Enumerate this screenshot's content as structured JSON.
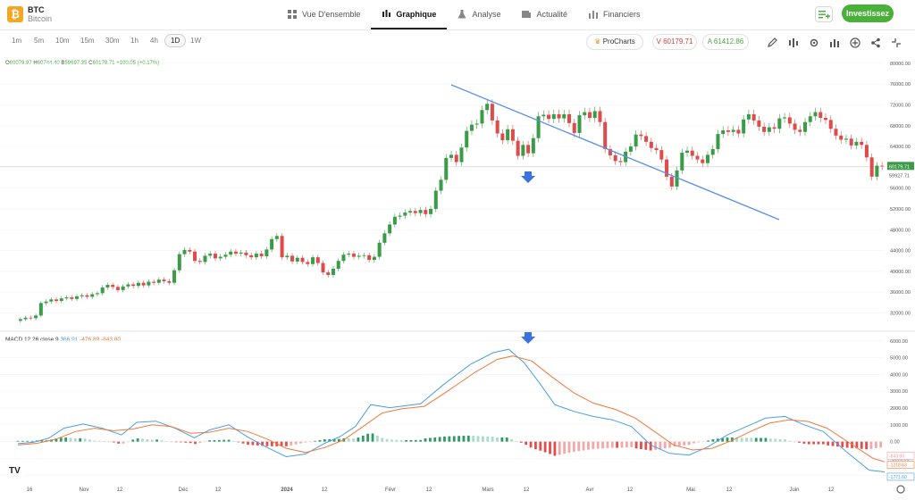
{
  "asset": {
    "symbol": "BTC",
    "name": "Bitcoin",
    "logo_glyph": "₿"
  },
  "nav": [
    {
      "label": "Vue D'ensemble",
      "icon": "grid-icon"
    },
    {
      "label": "Graphique",
      "icon": "candles-icon",
      "active": true
    },
    {
      "label": "Analyse",
      "icon": "flask-icon"
    },
    {
      "label": "Actualité",
      "icon": "news-icon"
    },
    {
      "label": "Financiers",
      "icon": "bars-icon"
    }
  ],
  "actions": {
    "invest_label": "Investissez"
  },
  "timeframes": [
    "1m",
    "5m",
    "10m",
    "15m",
    "30m",
    "1h",
    "4h",
    "1D",
    "1W"
  ],
  "active_timeframe": "1D",
  "toolbar": {
    "prochart_label": "ProCharts",
    "sell_label": "V 60179.71",
    "buy_label": "A 61412.86"
  },
  "ohlc": {
    "o": "60079.97",
    "h": "60744.40",
    "b": "59697.35",
    "c": "60179.71",
    "change": "+100.05 (+0.17%)",
    "o_lbl": "O",
    "h_lbl": "H",
    "b_lbl": "B",
    "c_lbl": "C"
  },
  "macd_legend": {
    "label": "MACD 12 26 close 9",
    "v1": "366.91",
    "v2": "-476.89",
    "v3": "-843.80"
  },
  "price_axis": {
    "ticks": [
      "80000.00",
      "76000.00",
      "72000.00",
      "68000.00",
      "64000.00",
      "60000.00",
      "56000.00",
      "52000.00",
      "48000.00",
      "44000.00",
      "40000.00",
      "36000.00",
      "32000.00"
    ],
    "last_price": "60179.71",
    "bid_label": "59927.71"
  },
  "macd_axis": {
    "ticks": [
      "6000.00",
      "5000.00",
      "4000.00",
      "3000.00",
      "2000.00",
      "1000.00",
      "0.00",
      "-1000.00",
      "-2000.00"
    ],
    "badges": [
      "-843.80",
      "-1218.63",
      "-1771.60"
    ]
  },
  "x_axis": [
    "16",
    "Nov",
    "12",
    "Déc",
    "12",
    "2024",
    "12",
    "Févr",
    "12",
    "Mars",
    "12",
    "Avr",
    "12",
    "Mai",
    "12",
    "Juin",
    "12"
  ],
  "colors": {
    "up": "#3a9c48",
    "down": "#dd4b4b",
    "macd": "#4a9ee6",
    "signal": "#f07a3c",
    "trend": "#5b8ee8",
    "invest": "#49b139"
  },
  "chart_data": {
    "type": "candlestick",
    "y_range": [
      29000,
      81000
    ],
    "closes": [
      30800,
      31100,
      31000,
      31500,
      33900,
      34200,
      34600,
      34300,
      34800,
      35000,
      34700,
      35200,
      35400,
      35100,
      35600,
      35800,
      36900,
      37400,
      37000,
      36400,
      37100,
      37500,
      37200,
      37800,
      37300,
      38000,
      37800,
      38400,
      38100,
      37800,
      40200,
      43300,
      44100,
      43800,
      42000,
      41800,
      43000,
      43400,
      42500,
      42800,
      43200,
      43800,
      43400,
      43600,
      43100,
      42700,
      43400,
      42900,
      44200,
      46200,
      46800,
      42700,
      43000,
      41900,
      42600,
      41800,
      41400,
      42700,
      41600,
      39800,
      39300,
      40500,
      42000,
      43200,
      43400,
      42800,
      43000,
      43100,
      42200,
      42800,
      45500,
      47300,
      49000,
      50500,
      50700,
      51300,
      51600,
      51200,
      51800,
      51000,
      52000,
      55500,
      57600,
      61800,
      62400,
      61000,
      63800,
      67000,
      68200,
      68400,
      71000,
      72200,
      69000,
      66500,
      65200,
      67300,
      65100,
      62200,
      64300,
      62700,
      65600,
      69800,
      70100,
      69300,
      70200,
      69400,
      70200,
      68500,
      66600,
      70000,
      70600,
      69500,
      70800,
      68700,
      63500,
      62300,
      61200,
      61000,
      63000,
      64000,
      66300,
      66000,
      64900,
      63700,
      63300,
      61500,
      58200,
      56300,
      59400,
      62800,
      63200,
      62200,
      61500,
      60800,
      62400,
      63500,
      66400,
      67100,
      66800,
      67200,
      66500,
      69200,
      70200,
      69000,
      67800,
      66800,
      67700,
      67400,
      69400,
      69600,
      68400,
      67200,
      66800,
      68700,
      69800,
      70600,
      69500,
      69100,
      67400,
      66100,
      65300,
      65500,
      64200,
      64900,
      64300,
      61900,
      58200,
      60300,
      60180
    ],
    "macd": [
      {
        "x": 0,
        "y": -120
      },
      {
        "x": 8,
        "y": -40
      },
      {
        "x": 16,
        "y": 200
      },
      {
        "x": 24,
        "y": 800
      },
      {
        "x": 34,
        "y": 1050
      },
      {
        "x": 44,
        "y": 800
      },
      {
        "x": 54,
        "y": 400
      },
      {
        "x": 62,
        "y": 1150
      },
      {
        "x": 72,
        "y": 1220
      },
      {
        "x": 82,
        "y": 800
      },
      {
        "x": 92,
        "y": 230
      },
      {
        "x": 100,
        "y": 700
      },
      {
        "x": 110,
        "y": 1000
      },
      {
        "x": 120,
        "y": 260
      },
      {
        "x": 130,
        "y": -350
      },
      {
        "x": 140,
        "y": -900
      },
      {
        "x": 150,
        "y": -740
      },
      {
        "x": 160,
        "y": -100
      },
      {
        "x": 168,
        "y": 300
      },
      {
        "x": 176,
        "y": 900
      },
      {
        "x": 184,
        "y": 2200
      },
      {
        "x": 194,
        "y": 2020
      },
      {
        "x": 210,
        "y": 2250
      },
      {
        "x": 222,
        "y": 3400
      },
      {
        "x": 236,
        "y": 4600
      },
      {
        "x": 248,
        "y": 5300
      },
      {
        "x": 256,
        "y": 5500
      },
      {
        "x": 264,
        "y": 4700
      },
      {
        "x": 272,
        "y": 3500
      },
      {
        "x": 280,
        "y": 2200
      },
      {
        "x": 290,
        "y": 1800
      },
      {
        "x": 300,
        "y": 1500
      },
      {
        "x": 310,
        "y": 1300
      },
      {
        "x": 320,
        "y": 900
      },
      {
        "x": 330,
        "y": -200
      },
      {
        "x": 340,
        "y": -700
      },
      {
        "x": 350,
        "y": -800
      },
      {
        "x": 360,
        "y": -300
      },
      {
        "x": 370,
        "y": 400
      },
      {
        "x": 380,
        "y": 900
      },
      {
        "x": 390,
        "y": 1400
      },
      {
        "x": 400,
        "y": 1500
      },
      {
        "x": 410,
        "y": 1000
      },
      {
        "x": 420,
        "y": 600
      },
      {
        "x": 432,
        "y": -600
      },
      {
        "x": 444,
        "y": -1700
      },
      {
        "x": 452,
        "y": -1800
      }
    ],
    "signal": [
      {
        "x": 0,
        "y": -200
      },
      {
        "x": 10,
        "y": -100
      },
      {
        "x": 20,
        "y": 150
      },
      {
        "x": 30,
        "y": 600
      },
      {
        "x": 40,
        "y": 800
      },
      {
        "x": 50,
        "y": 650
      },
      {
        "x": 60,
        "y": 750
      },
      {
        "x": 70,
        "y": 1000
      },
      {
        "x": 80,
        "y": 900
      },
      {
        "x": 90,
        "y": 500
      },
      {
        "x": 100,
        "y": 560
      },
      {
        "x": 110,
        "y": 800
      },
      {
        "x": 120,
        "y": 600
      },
      {
        "x": 130,
        "y": 150
      },
      {
        "x": 140,
        "y": -400
      },
      {
        "x": 150,
        "y": -650
      },
      {
        "x": 160,
        "y": -350
      },
      {
        "x": 170,
        "y": 100
      },
      {
        "x": 180,
        "y": 900
      },
      {
        "x": 190,
        "y": 1700
      },
      {
        "x": 200,
        "y": 1950
      },
      {
        "x": 212,
        "y": 2100
      },
      {
        "x": 224,
        "y": 3000
      },
      {
        "x": 238,
        "y": 4100
      },
      {
        "x": 250,
        "y": 4900
      },
      {
        "x": 258,
        "y": 5100
      },
      {
        "x": 268,
        "y": 4800
      },
      {
        "x": 278,
        "y": 3900
      },
      {
        "x": 290,
        "y": 2900
      },
      {
        "x": 300,
        "y": 2300
      },
      {
        "x": 312,
        "y": 1900
      },
      {
        "x": 322,
        "y": 1400
      },
      {
        "x": 332,
        "y": 600
      },
      {
        "x": 342,
        "y": -200
      },
      {
        "x": 352,
        "y": -500
      },
      {
        "x": 362,
        "y": -400
      },
      {
        "x": 372,
        "y": 50
      },
      {
        "x": 382,
        "y": 600
      },
      {
        "x": 392,
        "y": 1100
      },
      {
        "x": 402,
        "y": 1300
      },
      {
        "x": 412,
        "y": 1200
      },
      {
        "x": 422,
        "y": 800
      },
      {
        "x": 434,
        "y": -100
      },
      {
        "x": 446,
        "y": -1000
      },
      {
        "x": 452,
        "y": -1200
      }
    ],
    "macd_range": [
      -2200,
      6200
    ],
    "macd_x_range": [
      0,
      452
    ]
  }
}
